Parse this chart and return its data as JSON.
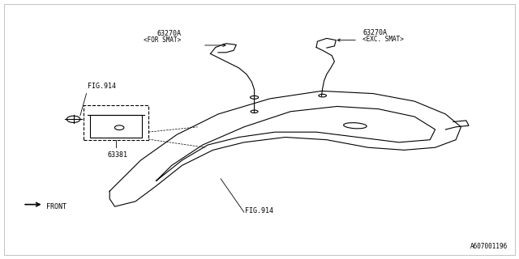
{
  "bg_color": "#ffffff",
  "line_color": "#000000",
  "text_color": "#000000",
  "fig_width": 6.4,
  "fig_height": 3.2,
  "dpi": 100,
  "watermark": "A607001196",
  "labels": {
    "part1": "63270A",
    "part1_sub": "<FOR SMAT>",
    "part2": "63270A",
    "part2_sub": "<EXC. SMAT>",
    "part3": "63381",
    "fig914_top": "FIG.914",
    "fig914_bot": "FIG.914",
    "front": "FRONT"
  }
}
